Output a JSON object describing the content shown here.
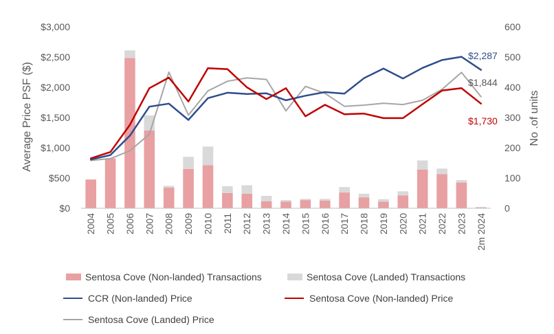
{
  "chart_data": {
    "type": "bar+line",
    "categories": [
      "2004",
      "2005",
      "2006",
      "2007",
      "2008",
      "2009",
      "2010",
      "2011",
      "2012",
      "2013",
      "2014",
      "2015",
      "2016",
      "2017",
      "2018",
      "2019",
      "2020",
      "2021",
      "2022",
      "2023",
      "2m 2024"
    ],
    "y_left": {
      "label": "Average Price PSF ($)",
      "range": [
        0,
        3000
      ],
      "ticks": [
        "$0",
        "$500",
        "$1,000",
        "$1,500",
        "$2,000",
        "$2,500",
        "$3,000"
      ]
    },
    "y_right": {
      "label": "No .of units",
      "range": [
        0,
        600
      ],
      "ticks": [
        "0",
        "100",
        "200",
        "300",
        "400",
        "500",
        "600"
      ]
    },
    "bar_series": [
      {
        "name": "Sentosa Cove (Non-landed) Transactions",
        "color": "#e8a0a2",
        "values": [
          95,
          165,
          497,
          257,
          68,
          130,
          142,
          50,
          48,
          23,
          22,
          27,
          25,
          52,
          36,
          22,
          42,
          128,
          113,
          85,
          3
        ]
      },
      {
        "name": "Sentosa Cove (Landed) Transactions",
        "color": "#d9d9d9",
        "values": [
          0,
          0,
          25,
          50,
          6,
          40,
          62,
          23,
          28,
          18,
          5,
          4,
          6,
          18,
          12,
          8,
          14,
          30,
          18,
          8,
          1
        ]
      }
    ],
    "line_series": [
      {
        "name": "CCR (Non-landed) Price",
        "color": "#2e4d8c",
        "values": [
          805,
          880,
          1200,
          1680,
          1730,
          1460,
          1820,
          1910,
          1890,
          1900,
          1785,
          1860,
          1920,
          1895,
          2150,
          2310,
          2145,
          2320,
          2450,
          2505,
          2287
        ]
      },
      {
        "name": "Sentosa Cove (Non-landed) Price",
        "color": "#c00000",
        "values": [
          825,
          930,
          1380,
          1985,
          2160,
          1765,
          2315,
          2300,
          2000,
          1805,
          1985,
          1520,
          1710,
          1555,
          1565,
          1490,
          1490,
          1720,
          1945,
          1985,
          1730
        ]
      },
      {
        "name": "Sentosa Cove (Landed) Price",
        "color": "#a6a6a6",
        "values": [
          790,
          820,
          950,
          1225,
          2250,
          1540,
          1940,
          2100,
          2155,
          2130,
          1610,
          2015,
          1900,
          1685,
          1705,
          1735,
          1715,
          1785,
          1965,
          2245,
          1844
        ]
      }
    ],
    "end_labels": [
      {
        "text": "$2,287",
        "color": "#2e4d8c"
      },
      {
        "text": "$1,844",
        "color": "#595959"
      },
      {
        "text": "$1,730",
        "color": "#c00000"
      }
    ],
    "grid": false,
    "legend_position": "bottom"
  }
}
